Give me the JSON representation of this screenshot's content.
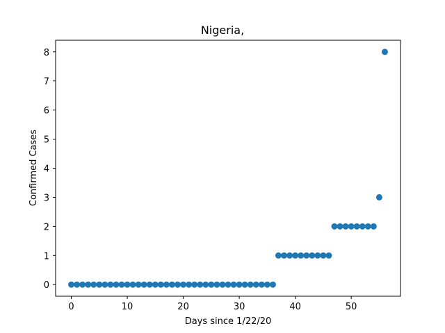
{
  "chart_data": {
    "type": "scatter",
    "title": "Nigeria,",
    "xlabel": "Days since 1/22/20",
    "ylabel": "Confirmed Cases",
    "xlim": [
      -2.8,
      58.8
    ],
    "ylim": [
      -0.4,
      8.4
    ],
    "xticks": [
      0,
      10,
      20,
      30,
      40,
      50
    ],
    "yticks": [
      0,
      1,
      2,
      3,
      4,
      5,
      6,
      7,
      8
    ],
    "grid": false,
    "marker_color": "#1f77b4",
    "series": [
      {
        "x": [
          0,
          1,
          2,
          3,
          4,
          5,
          6,
          7,
          8,
          9,
          10,
          11,
          12,
          13,
          14,
          15,
          16,
          17,
          18,
          19,
          20,
          21,
          22,
          23,
          24,
          25,
          26,
          27,
          28,
          29,
          30,
          31,
          32,
          33,
          34,
          35,
          36,
          37,
          38,
          39,
          40,
          41,
          42,
          43,
          44,
          45,
          46,
          47,
          48,
          49,
          50,
          51,
          52,
          53,
          54,
          55,
          56
        ],
        "y": [
          0,
          0,
          0,
          0,
          0,
          0,
          0,
          0,
          0,
          0,
          0,
          0,
          0,
          0,
          0,
          0,
          0,
          0,
          0,
          0,
          0,
          0,
          0,
          0,
          0,
          0,
          0,
          0,
          0,
          0,
          0,
          0,
          0,
          0,
          0,
          0,
          0,
          1,
          1,
          1,
          1,
          1,
          1,
          1,
          1,
          1,
          1,
          2,
          2,
          2,
          2,
          2,
          2,
          2,
          2,
          3,
          8
        ]
      }
    ]
  }
}
